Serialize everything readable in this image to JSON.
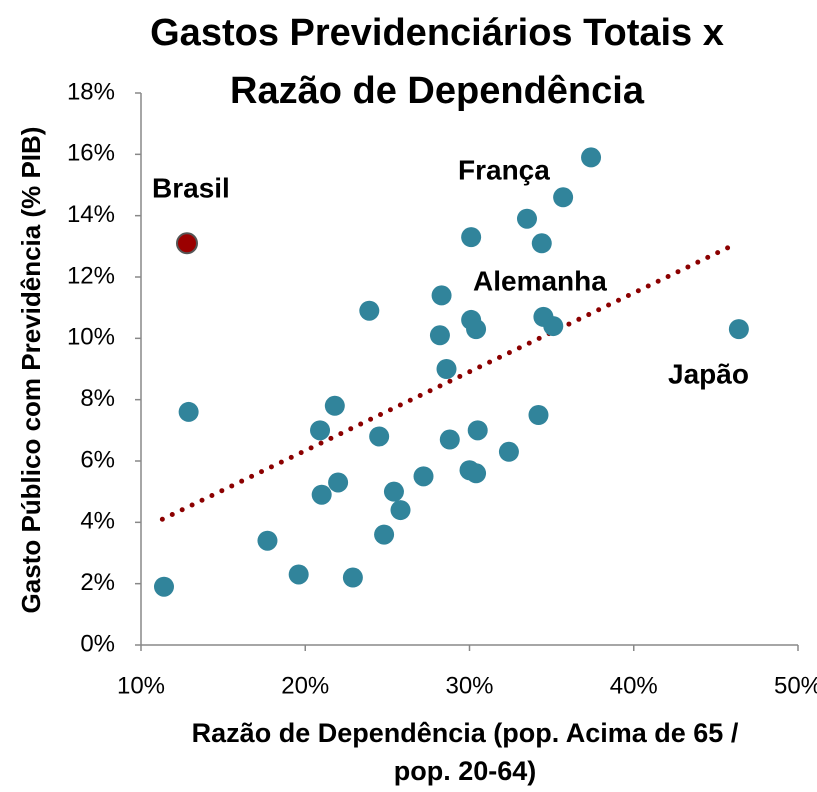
{
  "chart_data": {
    "type": "scatter",
    "title": [
      "Gastos Previdenciários Totais x",
      "Razão de Dependência"
    ],
    "xlabel": [
      "Razão de Dependência (pop. Acima de 65 /",
      "pop. 20-64)"
    ],
    "ylabel": "Gasto Público com Previdência (% PIB)",
    "x": [
      12.9,
      11.4,
      23.9,
      21.8,
      20.9,
      21.0,
      22.0,
      17.7,
      19.6,
      22.9,
      24.5,
      25.4,
      25.8,
      24.8,
      27.2,
      28.3,
      28.2,
      28.6,
      28.8,
      30.1,
      30.1,
      30.4,
      30.5,
      30.0,
      30.4,
      32.4,
      33.5,
      34.4,
      34.2,
      34.5,
      35.1,
      35.7,
      37.4,
      46.4
    ],
    "y": [
      7.6,
      1.9,
      10.9,
      7.8,
      7.0,
      4.9,
      5.3,
      3.4,
      2.3,
      2.2,
      6.8,
      5.0,
      4.4,
      3.6,
      5.5,
      11.4,
      10.1,
      9.0,
      6.7,
      13.3,
      10.6,
      10.3,
      7.0,
      5.7,
      5.6,
      6.3,
      13.9,
      13.1,
      7.5,
      10.7,
      10.4,
      14.6,
      15.9,
      10.3
    ],
    "color": "#31849b",
    "highlight": {
      "x": 12.8,
      "y": 13.1,
      "color": "#9b0000"
    },
    "trendline": {
      "x": [
        11.3,
        46.3
      ],
      "y": [
        4.1,
        13.1
      ],
      "color": "#8b0000"
    },
    "annotations": [
      "Brasil",
      "França",
      "Alemanha",
      "Japão"
    ],
    "xlim": [
      10,
      50
    ],
    "xticks": [
      {
        "value": 10,
        "label": "10%"
      },
      {
        "value": 20,
        "label": "20%"
      },
      {
        "value": 30,
        "label": "30%"
      },
      {
        "value": 40,
        "label": "40%"
      },
      {
        "value": 50,
        "label": "50%"
      }
    ],
    "ylim": [
      0,
      18
    ],
    "yticks": [
      {
        "value": 0,
        "label": "0%"
      },
      {
        "value": 2,
        "label": "2%"
      },
      {
        "value": 4,
        "label": "4%"
      },
      {
        "value": 6,
        "label": "6%"
      },
      {
        "value": 8,
        "label": "8%"
      },
      {
        "value": 10,
        "label": "10%"
      },
      {
        "value": 12,
        "label": "12%"
      },
      {
        "value": 14,
        "label": "14%"
      },
      {
        "value": 16,
        "label": "16%"
      },
      {
        "value": 18,
        "label": "18%"
      }
    ],
    "grid": false
  }
}
